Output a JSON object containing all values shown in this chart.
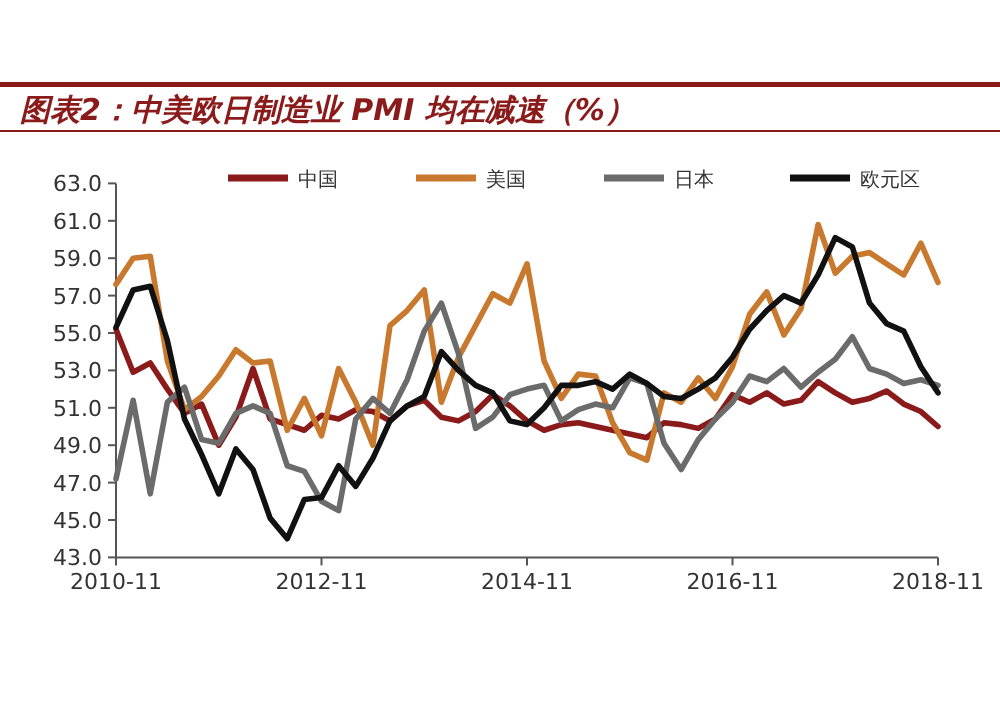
{
  "chart_data": {
    "type": "line",
    "title": "图表2：中美欧日制造业 PMI 均在减速（%）",
    "x": [
      "2010-11",
      "2011-01",
      "2011-03",
      "2011-05",
      "2011-07",
      "2011-09",
      "2011-11",
      "2012-01",
      "2012-03",
      "2012-05",
      "2012-07",
      "2012-09",
      "2012-11",
      "2013-01",
      "2013-03",
      "2013-05",
      "2013-07",
      "2013-09",
      "2013-11",
      "2014-01",
      "2014-03",
      "2014-05",
      "2014-07",
      "2014-09",
      "2014-11",
      "2015-01",
      "2015-03",
      "2015-05",
      "2015-07",
      "2015-09",
      "2015-11",
      "2016-01",
      "2016-03",
      "2016-05",
      "2016-07",
      "2016-09",
      "2016-11",
      "2017-01",
      "2017-03",
      "2017-05",
      "2017-07",
      "2017-09",
      "2017-11",
      "2018-01",
      "2018-03",
      "2018-05",
      "2018-07",
      "2018-09",
      "2018-11"
    ],
    "series": [
      {
        "name": "中国",
        "color": "#8b1a1a",
        "values": [
          55.2,
          52.9,
          53.4,
          52.0,
          50.7,
          51.2,
          49.0,
          50.5,
          53.1,
          50.4,
          50.1,
          49.8,
          50.6,
          50.4,
          50.9,
          50.8,
          50.3,
          51.1,
          51.4,
          50.5,
          50.3,
          50.8,
          51.7,
          51.1,
          50.3,
          49.8,
          50.1,
          50.2,
          50.0,
          49.8,
          49.6,
          49.4,
          50.2,
          50.1,
          49.9,
          50.4,
          51.7,
          51.3,
          51.8,
          51.2,
          51.4,
          52.4,
          51.8,
          51.3,
          51.5,
          51.9,
          51.2,
          50.8,
          50.0
        ]
      },
      {
        "name": "美国",
        "color": "#c8792e",
        "values": [
          57.6,
          59.0,
          59.1,
          53.5,
          50.9,
          51.6,
          52.7,
          54.1,
          53.4,
          53.5,
          49.8,
          51.5,
          49.5,
          53.1,
          51.3,
          49.0,
          55.4,
          56.2,
          57.3,
          51.3,
          53.7,
          55.4,
          57.1,
          56.6,
          58.7,
          53.5,
          51.5,
          52.8,
          52.7,
          50.2,
          48.6,
          48.2,
          51.8,
          51.3,
          52.6,
          51.5,
          53.2,
          56.0,
          57.2,
          54.9,
          56.3,
          60.8,
          58.2,
          59.1,
          59.3,
          58.7,
          58.1,
          59.8,
          57.7
        ]
      },
      {
        "name": "日本",
        "color": "#6b6b6b",
        "values": [
          47.2,
          51.4,
          46.4,
          51.3,
          52.1,
          49.3,
          49.1,
          50.7,
          51.1,
          50.7,
          47.9,
          47.6,
          46.0,
          45.5,
          50.4,
          51.5,
          50.7,
          52.5,
          55.1,
          56.6,
          53.9,
          49.9,
          50.5,
          51.7,
          52.0,
          52.2,
          50.3,
          50.9,
          51.2,
          51.0,
          52.6,
          52.3,
          49.1,
          47.7,
          49.3,
          50.4,
          51.3,
          52.7,
          52.4,
          53.1,
          52.1,
          52.9,
          53.6,
          54.8,
          53.1,
          52.8,
          52.3,
          52.5,
          52.2
        ]
      },
      {
        "name": "欧元区",
        "color": "#111111",
        "values": [
          55.3,
          57.3,
          57.5,
          54.6,
          50.4,
          48.5,
          46.4,
          48.8,
          47.7,
          45.1,
          44.0,
          46.1,
          46.2,
          47.9,
          46.8,
          48.3,
          50.3,
          51.1,
          51.6,
          54.0,
          53.0,
          52.2,
          51.8,
          50.3,
          50.1,
          51.0,
          52.2,
          52.2,
          52.4,
          52.0,
          52.8,
          52.3,
          51.6,
          51.5,
          52.0,
          52.6,
          53.7,
          55.2,
          56.2,
          57.0,
          56.6,
          58.1,
          60.1,
          59.6,
          56.6,
          55.5,
          55.1,
          53.2,
          51.8
        ]
      }
    ],
    "ylim": [
      43,
      63
    ],
    "yticks": [
      {
        "value": 43,
        "label": "43.0"
      },
      {
        "value": 45,
        "label": "45.0"
      },
      {
        "value": 47,
        "label": "47.0"
      },
      {
        "value": 49,
        "label": "49.0"
      },
      {
        "value": 51,
        "label": "51.0"
      },
      {
        "value": 53,
        "label": "53.0"
      },
      {
        "value": 55,
        "label": "55.0"
      },
      {
        "value": 57,
        "label": "57.0"
      },
      {
        "value": 59,
        "label": "59.0"
      },
      {
        "value": 61,
        "label": "61.0"
      },
      {
        "value": 63,
        "label": "63.0"
      }
    ],
    "xlim": [
      "2010-11",
      "2018-11"
    ],
    "xticks": [
      "2010-11",
      "2012-11",
      "2014-11",
      "2016-11",
      "2018-11"
    ],
    "legend": "top",
    "grid": false,
    "marker": "none",
    "line_style": "solid"
  }
}
